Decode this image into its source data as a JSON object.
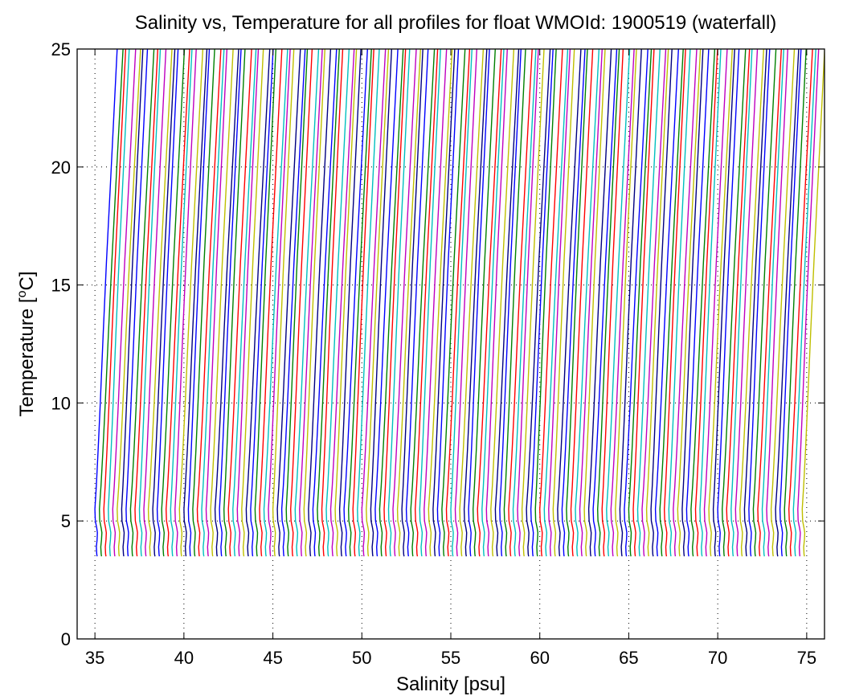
{
  "chart_data": {
    "type": "line",
    "title": "Salinity vs, Temperature for all profiles for float WMOId: 1900519 (waterfall)",
    "xlabel": "Salinity [psu]",
    "ylabel_main": "Temperature [",
    "ylabel_sup": "o",
    "ylabel_end": "C]",
    "xlim": [
      34,
      76
    ],
    "ylim": [
      0,
      25
    ],
    "xticks": [
      35,
      40,
      45,
      50,
      55,
      60,
      65,
      70,
      75
    ],
    "yticks": [
      0,
      5,
      10,
      15,
      20,
      25
    ],
    "grid": true,
    "profile_count": 160,
    "profile_spacing_psu": 0.25,
    "first_profile_offset_psu": 35.0,
    "colors": [
      "#0000ff",
      "#008000",
      "#ff0000",
      "#00bfbf",
      "#bf00bf",
      "#bfbf00",
      "#000080"
    ],
    "representative_profile": {
      "temperature": [
        25,
        22,
        19,
        16,
        13,
        10,
        8,
        6.5,
        5.5,
        5.0,
        4.7,
        4.5,
        4.2,
        3.9,
        3.6,
        3.5
      ],
      "salinity_anomaly": [
        1.25,
        1.05,
        0.85,
        0.65,
        0.47,
        0.3,
        0.18,
        0.08,
        0.0,
        0.02,
        0.1,
        0.14,
        0.12,
        0.08,
        0.1,
        0.12
      ]
    }
  }
}
